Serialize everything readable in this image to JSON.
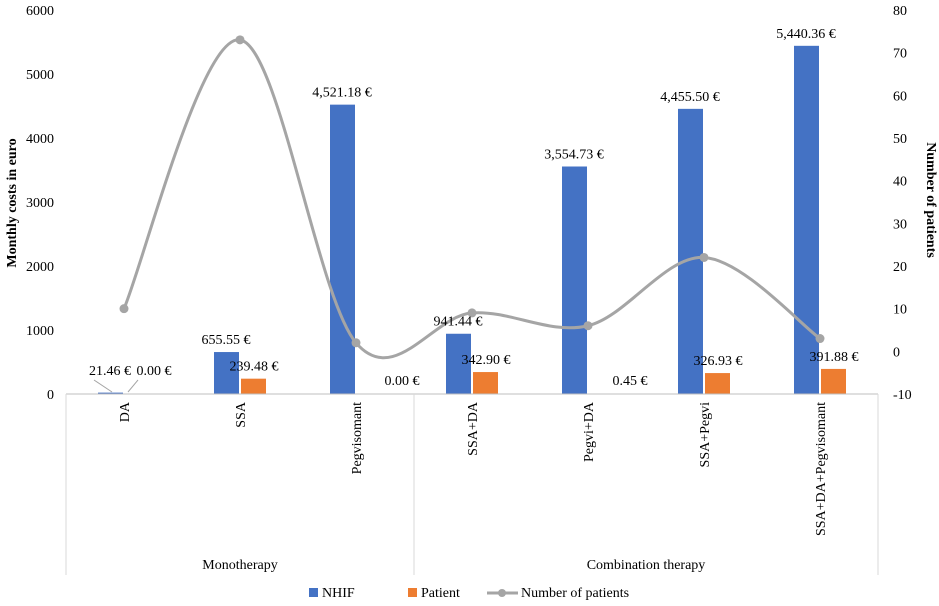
{
  "chart_data": {
    "type": "bar",
    "title": "",
    "ylabel": "Monthly costs in euro",
    "y2label": "Number of patients",
    "ylim": [
      0,
      6000
    ],
    "yticks": [
      0,
      1000,
      2000,
      3000,
      4000,
      5000,
      6000
    ],
    "y2lim": [
      -10,
      80
    ],
    "y2ticks": [
      -10,
      0,
      10,
      20,
      30,
      40,
      50,
      60,
      70,
      80
    ],
    "categories": [
      "DA",
      "SSA",
      "Pegvisomant",
      "SSA+DA",
      "Pegvi+DA",
      "SSA+Pegvi",
      "SSA+DA+Pegvisomant"
    ],
    "groups": [
      {
        "name": "Monotherapy",
        "count": 3
      },
      {
        "name": "Combination therapy",
        "count": 4
      }
    ],
    "series": [
      {
        "name": "NHIF",
        "type": "bar",
        "color": "#4472c4",
        "values": [
          21.46,
          655.55,
          4521.18,
          941.44,
          3554.73,
          4455.5,
          5440.36
        ],
        "labels": [
          "21.46 €",
          "655.55 €",
          "4,521.18 €",
          "941.44 €",
          "3,554.73 €",
          "4,455.50 €",
          "5,440.36 €"
        ]
      },
      {
        "name": "Patient",
        "type": "bar",
        "color": "#ed7d31",
        "values": [
          0.0,
          239.48,
          0.0,
          342.9,
          0.45,
          326.93,
          391.88
        ],
        "labels": [
          "0.00 €",
          "239.48 €",
          "0.00 €",
          "342.90 €",
          "0.45 €",
          "326.93 €",
          "391.88 €"
        ]
      },
      {
        "name": "Number of patients",
        "type": "line",
        "axis": "secondary",
        "color": "#a5a5a5",
        "values": [
          10,
          73,
          2,
          9,
          6,
          22,
          3
        ]
      }
    ],
    "legend_position": "bottom"
  }
}
